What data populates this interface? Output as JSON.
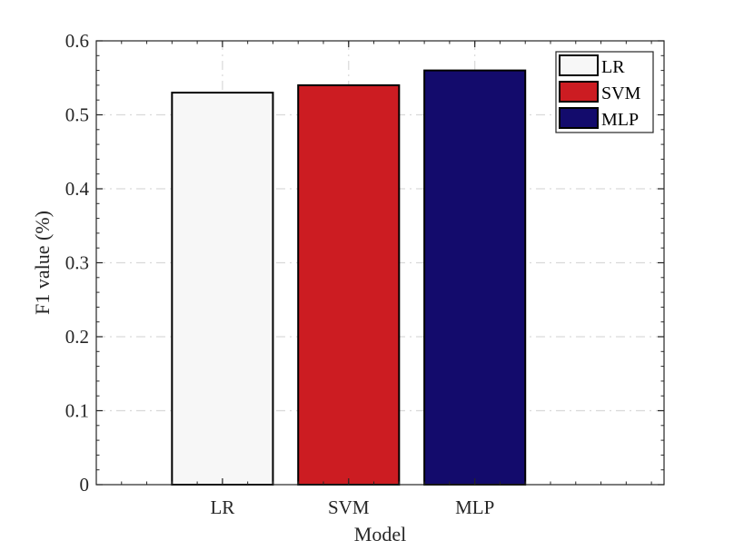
{
  "chart_data": {
    "type": "bar",
    "categories": [
      "LR",
      "SVM",
      "MLP"
    ],
    "values": [
      0.53,
      0.54,
      0.56
    ],
    "colors": [
      "#f7f7f7",
      "#cc1c22",
      "#130b6c"
    ],
    "xlabel": "Model",
    "ylabel": "F1 value (%)",
    "xlim": [
      0.0,
      4.5
    ],
    "ylim": [
      0,
      0.6
    ],
    "yticks": [
      0,
      0.1,
      0.2,
      0.3,
      0.4,
      0.5,
      0.6
    ],
    "ytick_labels": [
      "0",
      "0.1",
      "0.2",
      "0.3",
      "0.4",
      "0.5",
      "0.6"
    ],
    "grid": true,
    "legend": {
      "position": "top-right",
      "entries": [
        "LR",
        "SVM",
        "MLP"
      ]
    }
  }
}
